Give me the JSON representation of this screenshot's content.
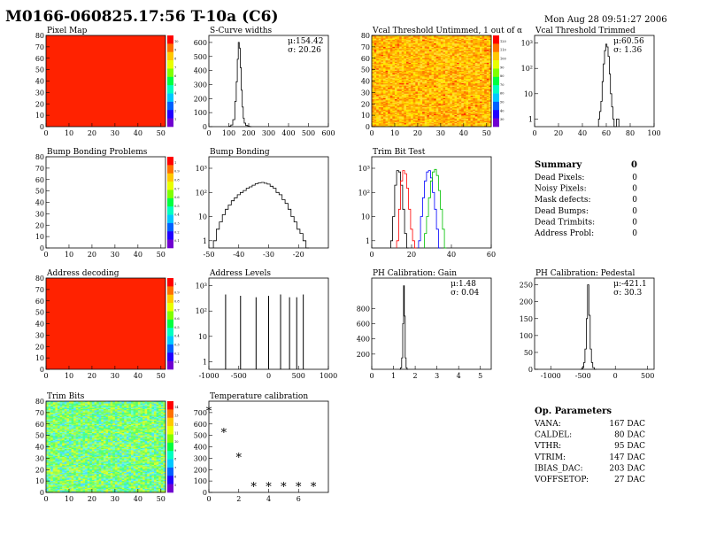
{
  "header": {
    "title": "M0166-060825.17:56 T-10a (C6)",
    "date": "Mon Aug 28 09:51:27 2006"
  },
  "chart_data": [
    {
      "id": "pixel-map",
      "type": "heatmap",
      "title": "Pixel Map",
      "xlim": [
        0,
        52
      ],
      "ylim": [
        0,
        80
      ],
      "xticks": [
        0,
        10,
        20,
        30,
        40,
        50
      ],
      "yticks": [
        0,
        10,
        20,
        30,
        40,
        50,
        60,
        70,
        80
      ],
      "fill": "uniform",
      "fill_color": "#ff2200",
      "zticks": [
        "10",
        "9",
        "8",
        "7",
        "6",
        "5",
        "4",
        "3",
        "2",
        "1"
      ]
    },
    {
      "id": "s-curve",
      "type": "line",
      "title": "S-Curve widths",
      "xlim": [
        0,
        600
      ],
      "ylim": [
        0,
        650
      ],
      "xticks": [
        0,
        100,
        200,
        300,
        400,
        500,
        600
      ],
      "yticks": [
        0,
        100,
        200,
        300,
        400,
        500,
        600
      ],
      "stats": [
        "μ:154.42",
        "σ: 20.26"
      ],
      "x": [
        105,
        115,
        125,
        135,
        140,
        145,
        150,
        155,
        160,
        165,
        170,
        175,
        180,
        190,
        200,
        210
      ],
      "y": [
        3,
        12,
        50,
        180,
        320,
        480,
        600,
        560,
        420,
        260,
        140,
        60,
        25,
        8,
        3,
        0
      ]
    },
    {
      "id": "vcal-untrimmed",
      "type": "heatmap",
      "title": "Vcal Threshold Untimmed, 1 out of α",
      "xlim": [
        0,
        52
      ],
      "ylim": [
        0,
        80
      ],
      "xticks": [
        0,
        10,
        20,
        30,
        40,
        50
      ],
      "yticks": [
        0,
        10,
        20,
        30,
        40,
        50,
        60,
        70,
        80
      ],
      "fill": "random",
      "palette": [
        "#ffea00",
        "#ffc800",
        "#ffa000",
        "#ff7a00",
        "#ffdd30",
        "#ffb400"
      ],
      "zticks": [
        "120",
        "110",
        "100",
        "90",
        "80",
        "70",
        "60",
        "50",
        "40",
        "30"
      ]
    },
    {
      "id": "vcal-trimmed",
      "type": "line",
      "title": "Vcal Threshold Trimmed",
      "log": true,
      "xlim": [
        0,
        100
      ],
      "ylim": [
        0.5,
        2000
      ],
      "xticks": [
        0,
        20,
        40,
        60,
        80,
        100
      ],
      "yticks": [
        1,
        10,
        100,
        1000
      ],
      "ytick_labels": [
        "1",
        "10",
        "10²",
        "10³"
      ],
      "stats": [
        "μ:60.56",
        "σ: 1.36"
      ],
      "x": [
        54,
        55,
        56,
        57,
        58,
        59,
        60,
        61,
        62,
        63,
        64,
        65,
        66,
        67,
        70
      ],
      "y": [
        1,
        2,
        5,
        30,
        150,
        500,
        900,
        700,
        300,
        60,
        10,
        3,
        1,
        0,
        1
      ]
    },
    {
      "id": "bump-bonding-problems",
      "type": "heatmap",
      "title": "Bump Bonding Problems",
      "xlim": [
        0,
        52
      ],
      "ylim": [
        0,
        80
      ],
      "xticks": [
        0,
        10,
        20,
        30,
        40,
        50
      ],
      "yticks": [
        0,
        10,
        20,
        30,
        40,
        50,
        60,
        70,
        80
      ],
      "fill": "empty",
      "zticks": [
        "1",
        "0.9",
        "0.8",
        "0.7",
        "0.6",
        "0.5",
        "0.4",
        "0.3",
        "0.2",
        "0.1"
      ]
    },
    {
      "id": "bump-bonding",
      "type": "line",
      "title": "Bump Bonding",
      "log": true,
      "xlim": [
        -50,
        -10
      ],
      "ylim": [
        0.5,
        3000
      ],
      "xticks": [
        -50,
        -40,
        -30,
        -20
      ],
      "yticks": [
        1,
        10,
        100,
        1000
      ],
      "ytick_labels": [
        "1",
        "10",
        "10²",
        "10³"
      ],
      "x": [
        -48,
        -47,
        -46,
        -45,
        -44,
        -43,
        -42,
        -41,
        -40,
        -39,
        -38,
        -37,
        -36,
        -35,
        -34,
        -33,
        -32,
        -31,
        -30,
        -29,
        -28,
        -27,
        -26,
        -25,
        -24,
        -23,
        -22,
        -21,
        -20,
        -19,
        -18,
        -17
      ],
      "y": [
        1,
        3,
        6,
        12,
        20,
        30,
        45,
        60,
        80,
        100,
        120,
        150,
        170,
        200,
        230,
        250,
        260,
        240,
        220,
        180,
        150,
        100,
        80,
        50,
        35,
        20,
        10,
        6,
        3,
        2,
        1,
        0
      ]
    },
    {
      "id": "trim-bit-test",
      "type": "line",
      "title": "Trim Bit Test",
      "log": true,
      "xlim": [
        0,
        60
      ],
      "ylim": [
        0.5,
        3000
      ],
      "xticks": [
        0,
        20,
        40,
        60
      ],
      "yticks": [
        1,
        10,
        100,
        1000
      ],
      "ytick_labels": [
        "1",
        "10",
        "10²",
        "10³"
      ],
      "series": [
        {
          "color": "#000000",
          "x": [
            10,
            11,
            12,
            13,
            14,
            15,
            16,
            17,
            18
          ],
          "y": [
            1,
            10,
            200,
            800,
            700,
            200,
            20,
            2,
            0
          ]
        },
        {
          "color": "#ff0000",
          "x": [
            13,
            14,
            15,
            16,
            17,
            18,
            19,
            20,
            21,
            22
          ],
          "y": [
            1,
            20,
            300,
            800,
            600,
            150,
            20,
            3,
            1,
            0
          ]
        },
        {
          "color": "#0000ff",
          "x": [
            24,
            25,
            26,
            27,
            28,
            29,
            30,
            31,
            32,
            33,
            34
          ],
          "y": [
            1,
            10,
            60,
            300,
            700,
            800,
            400,
            100,
            20,
            3,
            0
          ]
        },
        {
          "color": "#00c000",
          "x": [
            27,
            28,
            29,
            30,
            31,
            32,
            33,
            34,
            35,
            36,
            37
          ],
          "y": [
            2,
            10,
            60,
            300,
            700,
            900,
            500,
            120,
            20,
            3,
            0
          ]
        }
      ]
    },
    {
      "id": "address-decoding",
      "type": "heatmap",
      "title": "Address decoding",
      "xlim": [
        0,
        52
      ],
      "ylim": [
        0,
        80
      ],
      "xticks": [
        0,
        10,
        20,
        30,
        40,
        50
      ],
      "yticks": [
        0,
        10,
        20,
        30,
        40,
        50,
        60,
        70,
        80
      ],
      "fill": "uniform",
      "fill_color": "#ff2200",
      "zticks": [
        "1",
        "0.9",
        "0.8",
        "0.7",
        "0.6",
        "0.5",
        "0.4",
        "0.3",
        "0.2",
        "0.1"
      ]
    },
    {
      "id": "address-levels",
      "type": "line",
      "title": "Address Levels",
      "log": true,
      "xlim": [
        -1000,
        1000
      ],
      "ylim": [
        0.5,
        2000
      ],
      "xticks": [
        -1000,
        -500,
        0,
        500,
        1000
      ],
      "yticks": [
        1,
        10,
        100,
        1000
      ],
      "ytick_labels": [
        "1",
        "10",
        "10²",
        "10³"
      ],
      "spikes": [
        {
          "x": -720,
          "y": 450
        },
        {
          "x": -470,
          "y": 400
        },
        {
          "x": -210,
          "y": 350
        },
        {
          "x": 0,
          "y": 400
        },
        {
          "x": 200,
          "y": 450
        },
        {
          "x": 350,
          "y": 350
        },
        {
          "x": 470,
          "y": 350
        },
        {
          "x": 580,
          "y": 450
        }
      ]
    },
    {
      "id": "ph-gain",
      "type": "line",
      "title": "PH Calibration: Gain",
      "xlim": [
        0,
        5.5
      ],
      "ylim": [
        0,
        1200
      ],
      "xticks": [
        0,
        1,
        2,
        3,
        4,
        5
      ],
      "yticks": [
        200,
        400,
        600,
        800
      ],
      "stats": [
        "μ:1.48",
        "σ: 0.04"
      ],
      "x": [
        1.3,
        1.35,
        1.4,
        1.45,
        1.48,
        1.52,
        1.56,
        1.6,
        1.65
      ],
      "y": [
        0,
        20,
        150,
        600,
        1100,
        700,
        150,
        20,
        0
      ]
    },
    {
      "id": "ph-pedestal",
      "type": "line",
      "title": "PH Calibration: Pedestal",
      "xlim": [
        -1250,
        600
      ],
      "ylim": [
        0,
        270
      ],
      "xticks": [
        -1000,
        -500,
        0,
        500
      ],
      "yticks": [
        0,
        50,
        100,
        150,
        200,
        250
      ],
      "stats": [
        "μ:-421.1",
        "σ: 30.3"
      ],
      "x": [
        -530,
        -500,
        -480,
        -460,
        -440,
        -421,
        -400,
        -380,
        -360,
        -340,
        -310
      ],
      "y": [
        0,
        5,
        20,
        60,
        150,
        250,
        160,
        60,
        20,
        5,
        0
      ]
    },
    {
      "id": "trim-bits",
      "type": "heatmap",
      "title": "Trim Bits",
      "xlim": [
        0,
        52
      ],
      "ylim": [
        0,
        80
      ],
      "xticks": [
        0,
        10,
        20,
        30,
        40,
        50
      ],
      "yticks": [
        0,
        10,
        20,
        30,
        40,
        50,
        60,
        70,
        80
      ],
      "fill": "random",
      "palette": [
        "#90ff50",
        "#60ff60",
        "#b0ff40",
        "#40ffa0",
        "#d8ff30",
        "#70ffd0",
        "#50e0ff"
      ],
      "zticks": [
        "14",
        "13",
        "12",
        "11",
        "10",
        "9",
        "8",
        "7",
        "6",
        "5"
      ]
    },
    {
      "id": "temperature-calibration",
      "type": "scatter",
      "title": "Temperature calibration",
      "xlim": [
        0,
        8
      ],
      "ylim": [
        0,
        800
      ],
      "xticks": [
        0,
        2,
        4,
        6
      ],
      "yticks": [
        0,
        100,
        200,
        300,
        400,
        500,
        600,
        700
      ],
      "x": [
        0,
        1,
        2,
        3,
        4,
        5,
        6,
        7
      ],
      "y": [
        720,
        530,
        310,
        55,
        55,
        55,
        55,
        55
      ]
    }
  ],
  "summary": {
    "title": "Summary",
    "count": "0",
    "rows": [
      {
        "label": "Dead Pixels:",
        "value": "0"
      },
      {
        "label": "Noisy Pixels:",
        "value": "0"
      },
      {
        "label": "Mask defects:",
        "value": "0"
      },
      {
        "label": "Dead Bumps:",
        "value": "0"
      },
      {
        "label": "Dead Trimbits:",
        "value": "0"
      },
      {
        "label": "Address Probl:",
        "value": "0"
      }
    ]
  },
  "op_params": {
    "title": "Op. Parameters",
    "rows": [
      {
        "label": "VANA:",
        "value": "167 DAC"
      },
      {
        "label": "CALDEL:",
        "value": "80 DAC"
      },
      {
        "label": "VTHR:",
        "value": "95 DAC"
      },
      {
        "label": "VTRIM:",
        "value": "147 DAC"
      },
      {
        "label": "IBIAS_DAC:",
        "value": "203 DAC"
      },
      {
        "label": "VOFFSETOP:",
        "value": "27 DAC"
      }
    ]
  }
}
